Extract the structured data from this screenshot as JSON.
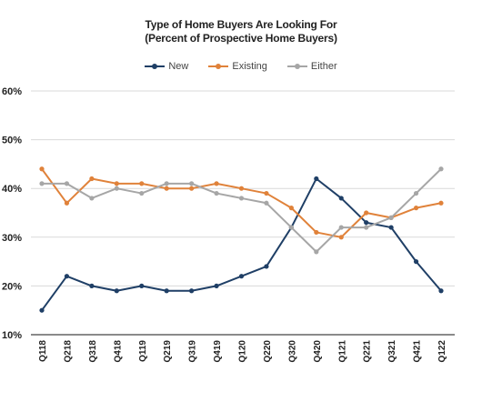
{
  "chart_data": {
    "type": "line",
    "title": "Type of Home Buyers Are Looking For",
    "subtitle": "(Percent of Prospective Home Buyers)",
    "categories": [
      "Q118",
      "Q218",
      "Q318",
      "Q418",
      "Q119",
      "Q219",
      "Q319",
      "Q419",
      "Q120",
      "Q220",
      "Q320",
      "Q420",
      "Q121",
      "Q221",
      "Q321",
      "Q421",
      "Q122"
    ],
    "series": [
      {
        "name": "New",
        "color": "#1f3f66",
        "values": [
          15,
          22,
          20,
          19,
          20,
          19,
          19,
          20,
          22,
          24,
          32,
          42,
          38,
          33,
          32,
          25,
          19
        ]
      },
      {
        "name": "Existing",
        "color": "#e0823a",
        "values": [
          44,
          37,
          42,
          41,
          41,
          40,
          40,
          41,
          40,
          39,
          36,
          31,
          30,
          35,
          34,
          36,
          37
        ]
      },
      {
        "name": "Either",
        "color": "#a6a6a6",
        "values": [
          41,
          41,
          38,
          40,
          39,
          41,
          41,
          39,
          38,
          37,
          32,
          27,
          32,
          32,
          34,
          39,
          44
        ]
      }
    ],
    "yticks": [
      "10%",
      "20%",
      "30%",
      "40%",
      "50%",
      "60%"
    ],
    "ylim": [
      10,
      60
    ],
    "legend_position": "top",
    "grid": true
  }
}
